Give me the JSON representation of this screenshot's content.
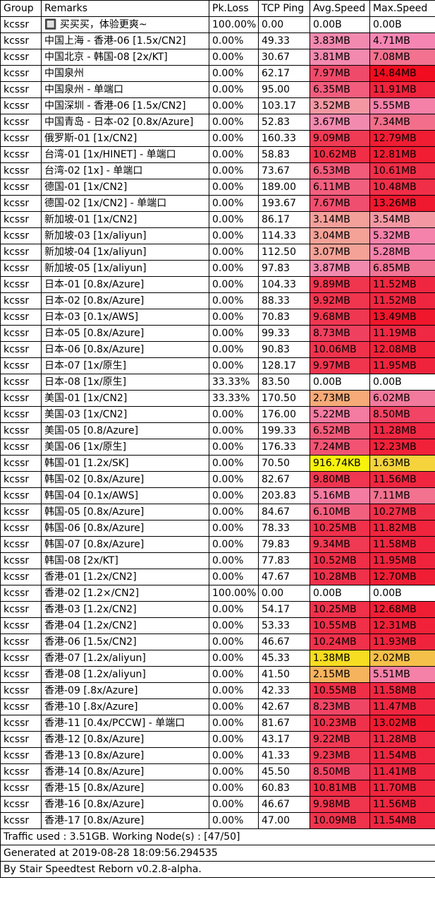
{
  "headers": [
    "Group",
    "Remarks",
    "Pk.Loss",
    "TCP Ping",
    "Avg.Speed",
    "Max.Speed"
  ],
  "rows": [
    {
      "group": "kcssr",
      "remark": "🔲 买买买，体验更爽~",
      "loss": "100.00%",
      "ping": "0.00",
      "avg": "0.00B",
      "max": "0.00B",
      "avg_color": "#ffffff",
      "max_color": "#ffffff"
    },
    {
      "group": "kcssr",
      "remark": "中国上海 - 香港-06 [1.5x/CN2]",
      "loss": "0.00%",
      "ping": "49.33",
      "avg": "3.83MB",
      "max": "4.71MB",
      "avg_color": "#f28ab0",
      "max_color": "#f586b3"
    },
    {
      "group": "kcssr",
      "remark": "中国北京 - 韩国-08 [2x/KT]",
      "loss": "0.00%",
      "ping": "30.67",
      "avg": "3.81MB",
      "max": "7.08MB",
      "avg_color": "#f28ab0",
      "max_color": "#f2728f"
    },
    {
      "group": "kcssr",
      "remark": "中国泉州",
      "loss": "0.00%",
      "ping": "62.17",
      "avg": "7.97MB",
      "max": "14.84MB",
      "avg_color": "#f04a6a",
      "max_color": "#f20c1f"
    },
    {
      "group": "kcssr",
      "remark": "中国泉州  - 单端口",
      "loss": "0.00%",
      "ping": "95.00",
      "avg": "6.35MB",
      "max": "11.91MB",
      "avg_color": "#f25d7d",
      "max_color": "#f0233c"
    },
    {
      "group": "kcssr",
      "remark": "中国深圳 - 香港-06 [1.5x/CN2]",
      "loss": "0.00%",
      "ping": "103.17",
      "avg": "3.52MB",
      "max": "5.55MB",
      "avg_color": "#f398a3",
      "max_color": "#f580a8"
    },
    {
      "group": "kcssr",
      "remark": "中国青岛 - 日本-02 [0.8x/Azure]",
      "loss": "0.00%",
      "ping": "52.83",
      "avg": "3.67MB",
      "max": "7.34MB",
      "avg_color": "#f28ab0",
      "max_color": "#f26e8a"
    },
    {
      "group": "kcssr",
      "remark": "俄罗斯-01 [1x/CN2]",
      "loss": "0.00%",
      "ping": "160.33",
      "avg": "9.09MB",
      "max": "12.79MB",
      "avg_color": "#f03b55",
      "max_color": "#f01d33"
    },
    {
      "group": "kcssr",
      "remark": "台湾-01 [1x/HINET] - 单端口",
      "loss": "0.00%",
      "ping": "58.83",
      "avg": "10.62MB",
      "max": "12.81MB",
      "avg_color": "#f02e47",
      "max_color": "#f01d33"
    },
    {
      "group": "kcssr",
      "remark": "台湾-02 [1x] - 单端口",
      "loss": "0.00%",
      "ping": "73.67",
      "avg": "6.53MB",
      "max": "10.61MB",
      "avg_color": "#f25b7a",
      "max_color": "#f02e47"
    },
    {
      "group": "kcssr",
      "remark": "德国-01 [1x/CN2]",
      "loss": "0.00%",
      "ping": "189.00",
      "avg": "6.11MB",
      "max": "10.48MB",
      "avg_color": "#f2607f",
      "max_color": "#f02e47"
    },
    {
      "group": "kcssr",
      "remark": "德国-02 [1x/CN2] - 单端口",
      "loss": "0.00%",
      "ping": "193.67",
      "avg": "7.67MB",
      "max": "13.26MB",
      "avg_color": "#f04e6e",
      "max_color": "#f0182e"
    },
    {
      "group": "kcssr",
      "remark": "新加坡-01 [1x/CN2]",
      "loss": "0.00%",
      "ping": "86.17",
      "avg": "3.14MB",
      "max": "3.54MB",
      "avg_color": "#f4a09a",
      "max_color": "#f398a3"
    },
    {
      "group": "kcssr",
      "remark": "新加坡-03 [1x/aliyun]",
      "loss": "0.00%",
      "ping": "114.33",
      "avg": "3.04MB",
      "max": "5.32MB",
      "avg_color": "#f4a298",
      "max_color": "#f582aa"
    },
    {
      "group": "kcssr",
      "remark": "新加坡-04 [1x/aliyun]",
      "loss": "0.00%",
      "ping": "112.50",
      "avg": "3.07MB",
      "max": "5.28MB",
      "avg_color": "#f4a298",
      "max_color": "#f582aa"
    },
    {
      "group": "kcssr",
      "remark": "新加坡-05 [1x/aliyun]",
      "loss": "0.00%",
      "ping": "97.83",
      "avg": "3.87MB",
      "max": "6.85MB",
      "avg_color": "#f28ab0",
      "max_color": "#f27494"
    },
    {
      "group": "kcssr",
      "remark": "日本-01 [0.8x/Azure]",
      "loss": "0.00%",
      "ping": "104.33",
      "avg": "9.89MB",
      "max": "11.52MB",
      "avg_color": "#f0354f",
      "max_color": "#f02640"
    },
    {
      "group": "kcssr",
      "remark": "日本-02 [0.8x/Azure]",
      "loss": "0.00%",
      "ping": "88.33",
      "avg": "9.92MB",
      "max": "11.52MB",
      "avg_color": "#f0354f",
      "max_color": "#f02640"
    },
    {
      "group": "kcssr",
      "remark": "日本-03 [0.1x/AWS]",
      "loss": "0.00%",
      "ping": "70.83",
      "avg": "9.68MB",
      "max": "13.49MB",
      "avg_color": "#f03751",
      "max_color": "#f0162b"
    },
    {
      "group": "kcssr",
      "remark": "日本-05 [0.8x/Azure]",
      "loss": "0.00%",
      "ping": "99.33",
      "avg": "8.73MB",
      "max": "11.19MB",
      "avg_color": "#f04060",
      "max_color": "#f02843"
    },
    {
      "group": "kcssr",
      "remark": "日本-06 [0.8x/Azure]",
      "loss": "0.00%",
      "ping": "90.83",
      "avg": "10.06MB",
      "max": "12.08MB",
      "avg_color": "#f0334d",
      "max_color": "#f0223a"
    },
    {
      "group": "kcssr",
      "remark": "日本-07 [1x/原生]",
      "loss": "0.00%",
      "ping": "128.17",
      "avg": "9.97MB",
      "max": "11.95MB",
      "avg_color": "#f0354f",
      "max_color": "#f0233c"
    },
    {
      "group": "kcssr",
      "remark": "日本-08 [1x/原生]",
      "loss": "33.33%",
      "ping": "83.50",
      "avg": "0.00B",
      "max": "0.00B",
      "avg_color": "#ffffff",
      "max_color": "#ffffff"
    },
    {
      "group": "kcssr",
      "remark": "美国-01 [1x/CN2]",
      "loss": "33.33%",
      "ping": "170.50",
      "avg": "2.73MB",
      "max": "6.02MB",
      "avg_color": "#f5aa78",
      "max_color": "#f27a9c"
    },
    {
      "group": "kcssr",
      "remark": "美国-03 [1x/CN2]",
      "loss": "0.00%",
      "ping": "176.00",
      "avg": "5.22MB",
      "max": "8.50MB",
      "avg_color": "#f47ba2",
      "max_color": "#f24464"
    },
    {
      "group": "kcssr",
      "remark": "美国-05 [0.8/Azure]",
      "loss": "0.00%",
      "ping": "199.33",
      "avg": "6.52MB",
      "max": "11.28MB",
      "avg_color": "#f25b7a",
      "max_color": "#f02843"
    },
    {
      "group": "kcssr",
      "remark": "美国-06 [1x/原生]",
      "loss": "0.00%",
      "ping": "176.33",
      "avg": "7.24MB",
      "max": "12.23MB",
      "avg_color": "#f25372",
      "max_color": "#f02139"
    },
    {
      "group": "kcssr",
      "remark": "韩国-01 [1.2x/SK]",
      "loss": "0.00%",
      "ping": "70.50",
      "avg": "916.74KB",
      "max": "1.63MB",
      "avg_color": "#f7f20c",
      "max_color": "#f5d33c"
    },
    {
      "group": "kcssr",
      "remark": "韩国-02 [0.8x/Azure]",
      "loss": "0.00%",
      "ping": "82.67",
      "avg": "9.80MB",
      "max": "11.56MB",
      "avg_color": "#f03650",
      "max_color": "#f02640"
    },
    {
      "group": "kcssr",
      "remark": "韩国-04 [0.1x/AWS]",
      "loss": "0.00%",
      "ping": "203.83",
      "avg": "5.16MB",
      "max": "7.11MB",
      "avg_color": "#f47ca3",
      "max_color": "#f2728f"
    },
    {
      "group": "kcssr",
      "remark": "韩国-05 [0.8x/Azure]",
      "loss": "0.00%",
      "ping": "84.67",
      "avg": "6.10MB",
      "max": "10.27MB",
      "avg_color": "#f2607f",
      "max_color": "#f03049"
    },
    {
      "group": "kcssr",
      "remark": "韩国-06 [0.8x/Azure]",
      "loss": "0.00%",
      "ping": "78.33",
      "avg": "10.25MB",
      "max": "11.82MB",
      "avg_color": "#f0314b",
      "max_color": "#f0243d"
    },
    {
      "group": "kcssr",
      "remark": "韩国-07 [0.8x/Azure]",
      "loss": "0.00%",
      "ping": "79.83",
      "avg": "9.34MB",
      "max": "11.58MB",
      "avg_color": "#f03952",
      "max_color": "#f02640"
    },
    {
      "group": "kcssr",
      "remark": "韩国-08 [2x/KT]",
      "loss": "0.00%",
      "ping": "77.83",
      "avg": "10.52MB",
      "max": "11.95MB",
      "avg_color": "#f02f48",
      "max_color": "#f0233c"
    },
    {
      "group": "kcssr",
      "remark": "香港-01 [1.2x/CN2]",
      "loss": "0.00%",
      "ping": "47.67",
      "avg": "10.28MB",
      "max": "12.70MB",
      "avg_color": "#f0314b",
      "max_color": "#f01e34"
    },
    {
      "group": "kcssr",
      "remark": "香港-02 [1.2×/CN2]",
      "loss": "100.00%",
      "ping": "0.00",
      "avg": "0.00B",
      "max": "0.00B",
      "avg_color": "#ffffff",
      "max_color": "#ffffff"
    },
    {
      "group": "kcssr",
      "remark": "香港-03 [1.2x/CN2]",
      "loss": "0.00%",
      "ping": "54.17",
      "avg": "10.25MB",
      "max": "12.68MB",
      "avg_color": "#f0314b",
      "max_color": "#f01e34"
    },
    {
      "group": "kcssr",
      "remark": "香港-04 [1.2x/CN2]",
      "loss": "0.00%",
      "ping": "53.33",
      "avg": "10.55MB",
      "max": "12.31MB",
      "avg_color": "#f02f48",
      "max_color": "#f02139"
    },
    {
      "group": "kcssr",
      "remark": "香港-06 [1.5x/CN2]",
      "loss": "0.00%",
      "ping": "46.67",
      "avg": "10.24MB",
      "max": "11.93MB",
      "avg_color": "#f0314b",
      "max_color": "#f0233c"
    },
    {
      "group": "kcssr",
      "remark": "香港-07 [1.2x/aliyun]",
      "loss": "0.00%",
      "ping": "45.33",
      "avg": "1.38MB",
      "max": "2.02MB",
      "avg_color": "#f7dd22",
      "max_color": "#f5c04a"
    },
    {
      "group": "kcssr",
      "remark": "香港-08 [1.2x/aliyun]",
      "loss": "0.00%",
      "ping": "41.50",
      "avg": "2.15MB",
      "max": "5.51MB",
      "avg_color": "#f5b35e",
      "max_color": "#f580a8"
    },
    {
      "group": "kcssr",
      "remark": "香港-09 [.8x/Azure]",
      "loss": "0.00%",
      "ping": "42.33",
      "avg": "10.55MB",
      "max": "11.58MB",
      "avg_color": "#f02f48",
      "max_color": "#f02640"
    },
    {
      "group": "kcssr",
      "remark": "香港-10 [.8x/Azure]",
      "loss": "0.00%",
      "ping": "42.67",
      "avg": "8.23MB",
      "max": "11.47MB",
      "avg_color": "#f04666",
      "max_color": "#f02640"
    },
    {
      "group": "kcssr",
      "remark": "香港-11 [0.4x/PCCW] - 单端口",
      "loss": "0.00%",
      "ping": "81.67",
      "avg": "10.23MB",
      "max": "13.02MB",
      "avg_color": "#f0314b",
      "max_color": "#f01a30"
    },
    {
      "group": "kcssr",
      "remark": "香港-12 [0.8x/Azure]",
      "loss": "0.00%",
      "ping": "43.17",
      "avg": "9.22MB",
      "max": "11.28MB",
      "avg_color": "#f03a54",
      "max_color": "#f02843"
    },
    {
      "group": "kcssr",
      "remark": "香港-13 [0.8x/Azure]",
      "loss": "0.00%",
      "ping": "41.33",
      "avg": "9.23MB",
      "max": "11.54MB",
      "avg_color": "#f03a54",
      "max_color": "#f02640"
    },
    {
      "group": "kcssr",
      "remark": "香港-14 [0.8x/Azure]",
      "loss": "0.00%",
      "ping": "45.50",
      "avg": "8.50MB",
      "max": "11.41MB",
      "avg_color": "#f04464",
      "max_color": "#f02741"
    },
    {
      "group": "kcssr",
      "remark": "香港-15 [0.8x/Azure]",
      "loss": "0.00%",
      "ping": "60.83",
      "avg": "10.81MB",
      "max": "11.70MB",
      "avg_color": "#f02c45",
      "max_color": "#f0253e"
    },
    {
      "group": "kcssr",
      "remark": "香港-16 [0.8x/Azure]",
      "loss": "0.00%",
      "ping": "46.67",
      "avg": "9.98MB",
      "max": "11.56MB",
      "avg_color": "#f0354f",
      "max_color": "#f02640"
    },
    {
      "group": "kcssr",
      "remark": "香港-17 [0.8x/Azure]",
      "loss": "0.00%",
      "ping": "47.00",
      "avg": "10.09MB",
      "max": "11.54MB",
      "avg_color": "#f0334d",
      "max_color": "#f02640"
    }
  ],
  "footer": {
    "traffic": "Traffic used : 3.51GB. Working Node(s) : [47/50]",
    "generated": "Generated at 2019-08-28 18:09:56.294535",
    "by": "By Stair Speedtest Reborn v0.2.8-alpha."
  }
}
